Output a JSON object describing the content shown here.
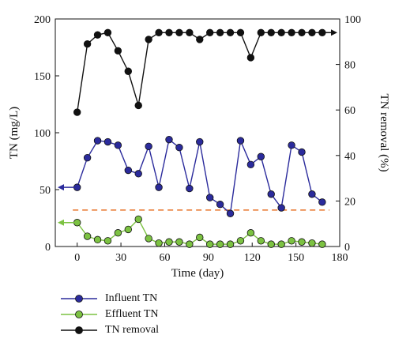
{
  "chart_data": {
    "type": "line",
    "x_axis": {
      "label": "Time (day)",
      "range": [
        -15,
        180
      ],
      "ticks": [
        0,
        30,
        60,
        90,
        120,
        150,
        180
      ]
    },
    "y_left": {
      "label": "TN (mg/L)",
      "range": [
        0,
        200
      ],
      "ticks": [
        0,
        50,
        100,
        150,
        200
      ]
    },
    "y_right": {
      "label": "TN removal (%)",
      "range": [
        0,
        100
      ],
      "ticks": [
        0,
        20,
        40,
        60,
        80,
        100
      ]
    },
    "reference_line": {
      "axis": "left",
      "value": 32,
      "color": "#e8732a",
      "style": "dashed"
    },
    "series": [
      {
        "name": "Influent TN",
        "axis": "left",
        "color": "#2b2b9c",
        "x": [
          0,
          7,
          14,
          21,
          28,
          35,
          42,
          49,
          56,
          63,
          70,
          77,
          84,
          91,
          98,
          105,
          112,
          119,
          126,
          133,
          140,
          147,
          154,
          161,
          168
        ],
        "y": [
          52,
          78,
          93,
          92,
          89,
          67,
          64,
          88,
          52,
          94,
          87,
          51,
          92,
          43,
          37,
          29,
          93,
          72,
          79,
          46,
          34,
          89,
          83,
          46,
          39
        ]
      },
      {
        "name": "Effluent TN",
        "axis": "left",
        "color": "#7cc242",
        "x": [
          0,
          7,
          14,
          21,
          28,
          35,
          42,
          49,
          56,
          63,
          70,
          77,
          84,
          91,
          98,
          105,
          112,
          119,
          126,
          133,
          140,
          147,
          154,
          161,
          168
        ],
        "y": [
          21,
          9,
          6,
          5,
          12,
          15,
          24,
          7,
          3,
          4,
          4,
          2,
          8,
          2,
          2,
          2,
          5,
          12,
          5,
          2,
          2,
          5,
          4,
          3,
          2
        ]
      },
      {
        "name": "TN removal",
        "axis": "right",
        "color": "#111111",
        "x": [
          0,
          7,
          14,
          21,
          28,
          35,
          42,
          49,
          56,
          63,
          70,
          77,
          84,
          91,
          98,
          105,
          112,
          119,
          126,
          133,
          140,
          147,
          154,
          161,
          168
        ],
        "y": [
          59,
          89,
          93,
          94,
          86,
          77,
          62,
          91,
          94,
          94,
          94,
          94,
          91,
          94,
          94,
          94,
          94,
          83,
          94,
          94,
          94,
          94,
          94,
          94,
          94
        ]
      }
    ],
    "axis_arrows": [
      {
        "series": "Influent TN",
        "direction": "left"
      },
      {
        "series": "Effluent TN",
        "direction": "left"
      },
      {
        "series": "TN removal",
        "direction": "right"
      }
    ],
    "legend": {
      "position": "bottom-left",
      "entries": [
        "Influent TN",
        "Effluent TN",
        "TN removal"
      ]
    }
  }
}
